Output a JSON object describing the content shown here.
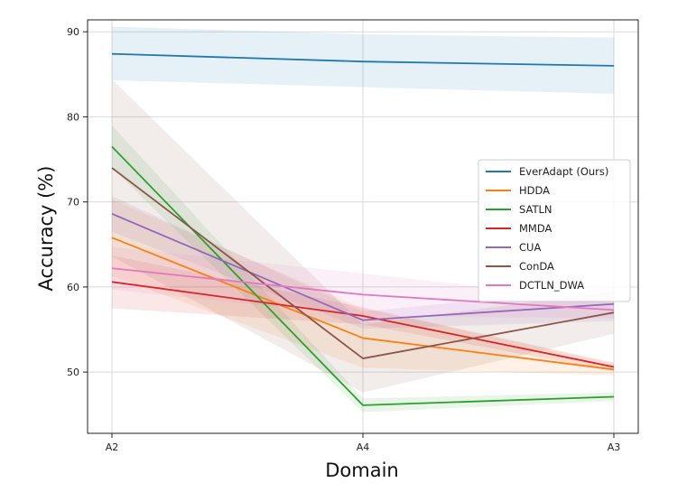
{
  "chart_data": {
    "type": "line",
    "title": "",
    "xlabel": "Domain",
    "ylabel": "Accuracy (%)",
    "categories": [
      "A2",
      "A4",
      "A3"
    ],
    "ylim": [
      42.8,
      91.4
    ],
    "yticks": [
      50,
      60,
      70,
      80,
      90
    ],
    "grid": true,
    "legend_position": "center-right",
    "series": [
      {
        "name": "EverAdapt (Ours)",
        "color": "#1f77b4",
        "values": [
          87.4,
          86.5,
          86.0
        ],
        "band_lower": [
          84.3,
          83.5,
          82.7
        ],
        "band_upper": [
          90.6,
          89.7,
          89.3
        ]
      },
      {
        "name": "HDDA",
        "color": "#ff7f0e",
        "values": [
          65.8,
          54.0,
          50.3
        ],
        "band_lower": [
          61.3,
          50.5,
          49.6
        ],
        "band_upper": [
          70.3,
          57.5,
          51.0
        ]
      },
      {
        "name": "SATLN",
        "color": "#2ca02c",
        "values": [
          76.5,
          46.1,
          47.1
        ],
        "band_lower": [
          74.0,
          45.3,
          46.6
        ],
        "band_upper": [
          79.0,
          46.9,
          47.6
        ]
      },
      {
        "name": "MMDA",
        "color": "#d62728",
        "values": [
          60.6,
          56.6,
          50.6
        ],
        "band_lower": [
          57.5,
          55.6,
          50.1
        ],
        "band_upper": [
          63.7,
          57.6,
          51.1
        ]
      },
      {
        "name": "CUA",
        "color": "#9467bd",
        "values": [
          68.6,
          56.1,
          58.0
        ],
        "band_lower": [
          66.5,
          55.1,
          56.0
        ],
        "band_upper": [
          70.7,
          57.1,
          60.0
        ]
      },
      {
        "name": "ConDA",
        "color": "#8c564b",
        "values": [
          74.0,
          51.6,
          57.0
        ],
        "band_lower": [
          63.6,
          47.6,
          54.5
        ],
        "band_upper": [
          84.4,
          55.6,
          59.5
        ]
      },
      {
        "name": "DCTLN_DWA",
        "color": "#e377c2",
        "values": [
          62.2,
          59.1,
          57.3
        ],
        "band_lower": [
          59.7,
          56.6,
          56.3
        ],
        "band_upper": [
          64.7,
          61.6,
          58.3
        ]
      }
    ]
  }
}
